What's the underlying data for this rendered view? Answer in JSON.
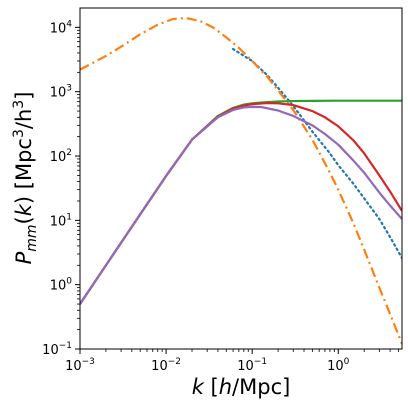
{
  "chart_data": {
    "type": "line",
    "title": "",
    "xlabel": "k [h/Mpc]",
    "ylabel": "P_mm(k) [Mpc^3/h^3]",
    "xscale": "log",
    "yscale": "log",
    "xlim": [
      0.001,
      5.5
    ],
    "ylim": [
      0.1,
      20000
    ],
    "grid": false,
    "legend": "none",
    "xticks": [
      {
        "value": 0.001,
        "base": "10",
        "exp": "−3"
      },
      {
        "value": 0.01,
        "base": "10",
        "exp": "−2"
      },
      {
        "value": 0.1,
        "base": "10",
        "exp": "−1"
      },
      {
        "value": 1,
        "base": "10",
        "exp": "0"
      }
    ],
    "yticks": [
      {
        "value": 0.1,
        "base": "10",
        "exp": "−1"
      },
      {
        "value": 1,
        "base": "10",
        "exp": "0"
      },
      {
        "value": 10,
        "base": "10",
        "exp": "1"
      },
      {
        "value": 100,
        "base": "10",
        "exp": "2"
      },
      {
        "value": 1000,
        "base": "10",
        "exp": "3"
      },
      {
        "value": 10000,
        "base": "10",
        "exp": "4"
      }
    ],
    "series": [
      {
        "color": "#1f77b4",
        "style": "dotted",
        "x": [
          0.06,
          0.1,
          0.15,
          0.2,
          0.3,
          0.5,
          0.8,
          1.0,
          1.5,
          2.0,
          3.0,
          4.0,
          5.5
        ],
        "y": [
          4600,
          3000,
          1800,
          1150,
          600,
          240,
          110,
          72,
          37,
          22,
          10.5,
          5.5,
          2.6
        ]
      },
      {
        "color": "#ff7f0e",
        "style": "dashdot",
        "x": [
          0.001,
          0.002,
          0.003,
          0.005,
          0.008,
          0.012,
          0.017,
          0.025,
          0.035,
          0.05,
          0.07,
          0.1,
          0.15,
          0.2,
          0.3,
          0.5,
          0.8,
          1.0,
          1.5,
          2.0,
          3.0,
          4.0,
          5.5
        ],
        "y": [
          2200,
          3600,
          5000,
          7800,
          11000,
          13500,
          14000,
          12500,
          10000,
          7000,
          4800,
          3000,
          1700,
          1050,
          520,
          180,
          55,
          30,
          9,
          3.5,
          0.9,
          0.35,
          0.12
        ]
      },
      {
        "color": "#2ca02c",
        "style": "solid",
        "x": [
          0.001,
          0.002,
          0.005,
          0.01,
          0.02,
          0.04,
          0.06,
          0.08,
          0.1,
          0.15,
          0.2,
          0.3,
          0.5,
          1.0,
          2.0,
          5.5
        ],
        "y": [
          0.5,
          2.0,
          12.4,
          49,
          180,
          420,
          560,
          630,
          660,
          690,
          705,
          715,
          720,
          725,
          725,
          725
        ]
      },
      {
        "color": "#d62728",
        "style": "solid",
        "x": [
          0.001,
          0.002,
          0.005,
          0.01,
          0.02,
          0.04,
          0.06,
          0.08,
          0.1,
          0.15,
          0.2,
          0.3,
          0.5,
          0.7,
          1.0,
          1.5,
          2.0,
          3.0,
          4.0,
          5.5
        ],
        "y": [
          0.5,
          2.0,
          12.4,
          49,
          180,
          410,
          545,
          610,
          640,
          665,
          660,
          620,
          500,
          400,
          290,
          175,
          110,
          50,
          28,
          14
        ]
      },
      {
        "color": "#9467bd",
        "style": "solid",
        "x": [
          0.001,
          0.002,
          0.005,
          0.01,
          0.02,
          0.04,
          0.06,
          0.08,
          0.1,
          0.13,
          0.2,
          0.3,
          0.5,
          0.7,
          1.0,
          1.5,
          2.0,
          3.0,
          4.0,
          5.5
        ],
        "y": [
          0.5,
          2.0,
          12.4,
          49,
          180,
          400,
          520,
          570,
          580,
          575,
          510,
          420,
          300,
          220,
          150,
          85,
          55,
          27,
          17,
          10.5
        ]
      }
    ]
  }
}
